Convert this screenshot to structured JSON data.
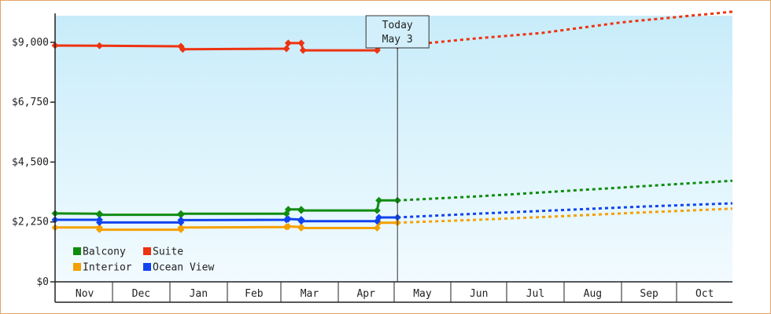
{
  "chart_data": {
    "type": "line",
    "xlabel": "",
    "ylabel": "",
    "ylim": [
      0,
      10000
    ],
    "y_ticks": [
      "$0",
      "$2,250",
      "$4,500",
      "$6,750",
      "$9,000"
    ],
    "y_tick_values": [
      0,
      2250,
      4500,
      6750,
      9000
    ],
    "x_range": [
      "2023-10-31",
      "2024-10-31"
    ],
    "months": [
      "Nov",
      "Dec",
      "Jan",
      "Feb",
      "Mar",
      "Apr",
      "May",
      "Jun",
      "Jul",
      "Aug",
      "Sep",
      "Oct"
    ],
    "month_starts": [
      "2023-11-01",
      "2023-12-01",
      "2024-01-01",
      "2024-02-01",
      "2024-03-01",
      "2024-04-01",
      "2024-05-01",
      "2024-06-01",
      "2024-07-01",
      "2024-08-01",
      "2024-09-01",
      "2024-10-01",
      "2024-11-01"
    ],
    "today": {
      "line1": "Today",
      "line2": "May 3",
      "date": "2024-05-03"
    },
    "legend_placement": "bottom-left",
    "grid": false,
    "background_top": "#c8ecfa",
    "background_bottom": "#f2fbff",
    "series": [
      {
        "name": "Balcony",
        "color": "#118c11",
        "history": [
          [
            "2023-10-31",
            2570
          ],
          [
            "2023-11-24",
            2560
          ],
          [
            "2023-11-24",
            2520
          ],
          [
            "2024-01-07",
            2520
          ],
          [
            "2024-01-07",
            2560
          ],
          [
            "2024-03-04",
            2560
          ],
          [
            "2024-03-05",
            2720
          ],
          [
            "2024-03-12",
            2720
          ],
          [
            "2024-03-12",
            2680
          ],
          [
            "2024-04-22",
            2680
          ],
          [
            "2024-04-23",
            3060
          ],
          [
            "2024-05-03",
            3060
          ]
        ],
        "forecast": [
          [
            "2024-05-03",
            3060
          ],
          [
            "2024-06-15",
            3210
          ],
          [
            "2024-08-01",
            3410
          ],
          [
            "2024-09-10",
            3580
          ],
          [
            "2024-10-31",
            3800
          ]
        ]
      },
      {
        "name": "Suite",
        "color": "#ee3311",
        "history": [
          [
            "2023-10-31",
            8880
          ],
          [
            "2023-11-24",
            8870
          ],
          [
            "2024-01-07",
            8850
          ],
          [
            "2024-01-08",
            8740
          ],
          [
            "2024-03-04",
            8760
          ],
          [
            "2024-03-05",
            8970
          ],
          [
            "2024-03-12",
            8970
          ],
          [
            "2024-03-13",
            8700
          ],
          [
            "2024-04-22",
            8700
          ],
          [
            "2024-04-23",
            8850
          ],
          [
            "2024-05-03",
            8860
          ]
        ],
        "forecast": [
          [
            "2024-05-03",
            8860
          ],
          [
            "2024-06-15",
            9150
          ],
          [
            "2024-07-20",
            9350
          ],
          [
            "2024-09-01",
            9750
          ],
          [
            "2024-10-31",
            10150
          ]
        ]
      },
      {
        "name": "Interior",
        "color": "#f5a000",
        "history": [
          [
            "2023-10-31",
            2040
          ],
          [
            "2023-11-24",
            2040
          ],
          [
            "2023-11-24",
            1960
          ],
          [
            "2024-01-07",
            1960
          ],
          [
            "2024-01-07",
            2040
          ],
          [
            "2024-03-04",
            2060
          ],
          [
            "2024-03-05",
            2080
          ],
          [
            "2024-03-12",
            2060
          ],
          [
            "2024-03-12",
            2020
          ],
          [
            "2024-04-22",
            2020
          ],
          [
            "2024-04-23",
            2220
          ],
          [
            "2024-05-03",
            2220
          ]
        ],
        "forecast": [
          [
            "2024-05-03",
            2220
          ],
          [
            "2024-06-15",
            2330
          ],
          [
            "2024-08-01",
            2470
          ],
          [
            "2024-09-10",
            2600
          ],
          [
            "2024-10-31",
            2750
          ]
        ]
      },
      {
        "name": "Ocean View",
        "color": "#1144ee",
        "history": [
          [
            "2023-10-31",
            2330
          ],
          [
            "2023-11-24",
            2330
          ],
          [
            "2023-11-24",
            2230
          ],
          [
            "2024-01-07",
            2230
          ],
          [
            "2024-01-07",
            2320
          ],
          [
            "2024-03-04",
            2330
          ],
          [
            "2024-03-05",
            2360
          ],
          [
            "2024-03-12",
            2340
          ],
          [
            "2024-03-12",
            2280
          ],
          [
            "2024-04-22",
            2280
          ],
          [
            "2024-04-23",
            2420
          ],
          [
            "2024-05-03",
            2420
          ]
        ],
        "forecast": [
          [
            "2024-05-03",
            2420
          ],
          [
            "2024-06-15",
            2560
          ],
          [
            "2024-08-01",
            2700
          ],
          [
            "2024-09-10",
            2820
          ],
          [
            "2024-10-31",
            2950
          ]
        ]
      }
    ]
  }
}
